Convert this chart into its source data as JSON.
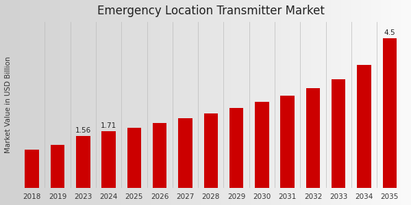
{
  "title": "Emergency Location Transmitter Market",
  "ylabel": "Market Value in USD Billion",
  "categories": [
    "2018",
    "2019",
    "2023",
    "2024",
    "2025",
    "2026",
    "2027",
    "2028",
    "2029",
    "2030",
    "2031",
    "2032",
    "2033",
    "2034",
    "2035"
  ],
  "values": [
    1.15,
    1.3,
    1.56,
    1.71,
    1.82,
    1.96,
    2.1,
    2.25,
    2.42,
    2.6,
    2.78,
    3.0,
    3.28,
    3.7,
    4.5
  ],
  "bar_color": "#cc0000",
  "annotated_bars": {
    "2023": "1.56",
    "2024": "1.71",
    "2035": "4.5"
  },
  "bg_left_color": "#d0d0d0",
  "bg_right_color": "#f8f8f8",
  "ylim": [
    0,
    5.0
  ],
  "title_fontsize": 12,
  "label_fontsize": 7.5,
  "tick_fontsize": 7.5,
  "bar_width": 0.55,
  "bottom_bar_color": "#cc0000",
  "bottom_bar_height": 0.022
}
